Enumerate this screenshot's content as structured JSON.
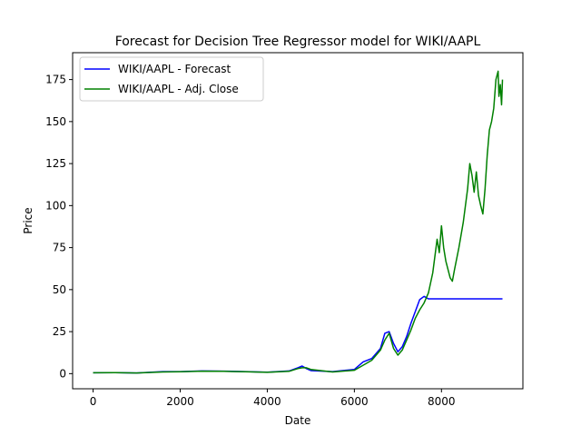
{
  "chart_data": {
    "type": "line",
    "title": "Forecast for Decision Tree Regressor model for WIKI/AAPL",
    "xlabel": "Date",
    "ylabel": "Price",
    "xlim": [
      -470,
      9870
    ],
    "ylim": [
      -9,
      191
    ],
    "x_ticks": [
      0,
      2000,
      4000,
      6000,
      8000
    ],
    "y_ticks": [
      0,
      25,
      50,
      75,
      100,
      125,
      150,
      175
    ],
    "legend_position": "top-left",
    "grid": false,
    "series": [
      {
        "name": "WIKI/AAPL - Forecast",
        "color": "#0000ff",
        "points": [
          [
            0,
            0.5
          ],
          [
            500,
            0.6
          ],
          [
            1000,
            0.4
          ],
          [
            1600,
            1.2
          ],
          [
            2000,
            1.2
          ],
          [
            2500,
            1.6
          ],
          [
            3000,
            1.5
          ],
          [
            3500,
            1.2
          ],
          [
            4000,
            0.9
          ],
          [
            4500,
            1.6
          ],
          [
            4700,
            3.5
          ],
          [
            4800,
            4.5
          ],
          [
            4900,
            3.0
          ],
          [
            5000,
            1.8
          ],
          [
            5500,
            1.2
          ],
          [
            6000,
            2.5
          ],
          [
            6200,
            7.0
          ],
          [
            6400,
            9.0
          ],
          [
            6600,
            15.0
          ],
          [
            6700,
            24.0
          ],
          [
            6800,
            25.0
          ],
          [
            6900,
            18.0
          ],
          [
            7000,
            13.0
          ],
          [
            7100,
            16.0
          ],
          [
            7200,
            22.0
          ],
          [
            7300,
            30.0
          ],
          [
            7400,
            37.0
          ],
          [
            7500,
            44.0
          ],
          [
            7600,
            46.0
          ],
          [
            7700,
            44.5
          ],
          [
            9400,
            44.5
          ]
        ]
      },
      {
        "name": "WIKI/AAPL - Adj. Close",
        "color": "#008000",
        "points": [
          [
            0,
            0.5
          ],
          [
            500,
            0.6
          ],
          [
            1000,
            0.4
          ],
          [
            1600,
            1.0
          ],
          [
            2000,
            1.1
          ],
          [
            2500,
            1.5
          ],
          [
            3000,
            1.4
          ],
          [
            3500,
            1.1
          ],
          [
            4000,
            0.8
          ],
          [
            4500,
            1.4
          ],
          [
            4700,
            3.0
          ],
          [
            4800,
            3.5
          ],
          [
            4900,
            3.5
          ],
          [
            5000,
            2.5
          ],
          [
            5500,
            1.0
          ],
          [
            6000,
            2.0
          ],
          [
            6200,
            5.0
          ],
          [
            6400,
            8.0
          ],
          [
            6600,
            14.0
          ],
          [
            6700,
            20.0
          ],
          [
            6800,
            24.0
          ],
          [
            6900,
            15.0
          ],
          [
            7000,
            11.0
          ],
          [
            7100,
            14.0
          ],
          [
            7200,
            20.0
          ],
          [
            7300,
            26.0
          ],
          [
            7400,
            33.0
          ],
          [
            7500,
            38.0
          ],
          [
            7600,
            42.0
          ],
          [
            7700,
            48.0
          ],
          [
            7800,
            60.0
          ],
          [
            7900,
            80.0
          ],
          [
            7950,
            72.0
          ],
          [
            8000,
            88.0
          ],
          [
            8050,
            75.0
          ],
          [
            8100,
            67.0
          ],
          [
            8200,
            57.0
          ],
          [
            8250,
            55.0
          ],
          [
            8300,
            62.0
          ],
          [
            8400,
            75.0
          ],
          [
            8500,
            90.0
          ],
          [
            8600,
            110.0
          ],
          [
            8650,
            125.0
          ],
          [
            8700,
            118.0
          ],
          [
            8750,
            108.0
          ],
          [
            8800,
            120.0
          ],
          [
            8850,
            106.0
          ],
          [
            8900,
            100.0
          ],
          [
            8950,
            95.0
          ],
          [
            9000,
            110.0
          ],
          [
            9050,
            130.0
          ],
          [
            9100,
            145.0
          ],
          [
            9150,
            150.0
          ],
          [
            9200,
            158.0
          ],
          [
            9250,
            175.0
          ],
          [
            9300,
            180.0
          ],
          [
            9320,
            165.0
          ],
          [
            9350,
            172.0
          ],
          [
            9380,
            160.0
          ],
          [
            9400,
            175.0
          ]
        ]
      }
    ]
  }
}
